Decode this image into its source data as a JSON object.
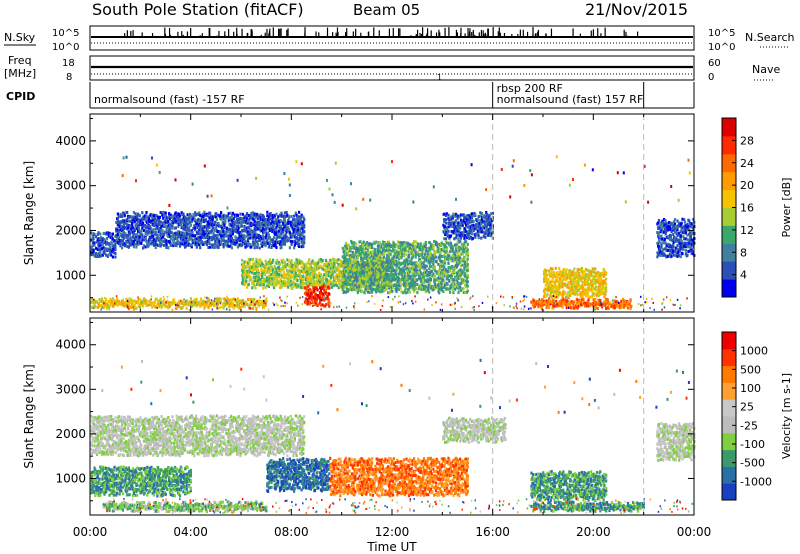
{
  "header": {
    "station": "South Pole Station (fitACF)",
    "beam": "Beam 05",
    "date": "21/Nov/2015"
  },
  "strip_labels": {
    "nsky": "N.Sky",
    "nsky_top": "10^5",
    "nsky_bottom": "10^0",
    "freq": "Freq",
    "freq_unit": "[MHz]",
    "freq_top": "18",
    "freq_bottom": "8",
    "cpid": "CPID",
    "nsearch": "N.Search",
    "nsearch_top": "10^5",
    "nsearch_bottom": "10^0",
    "nave": "Nave",
    "nave_top": "60",
    "nave_bottom": "0",
    "tick_one": "1"
  },
  "cpid_labels": [
    {
      "text": "normalsound (fast) -157 RF",
      "start_hour": 0.0
    },
    {
      "text": "rbsp 200 RF",
      "start_hour": 16.0
    },
    {
      "text": "normalsound (fast) 157 RF",
      "start_hour": 16.0
    }
  ],
  "cpid_boundaries_hours": [
    16.0,
    22.0
  ],
  "colors": {
    "power": [
      "#0000ee",
      "#2a50b8",
      "#3f7f9f",
      "#3aa86a",
      "#a8cc33",
      "#f5c400",
      "#ff9a00",
      "#ff6a00",
      "#ff2a00",
      "#dd0000"
    ],
    "velocity": [
      "#ee0000",
      "#ff3300",
      "#ff7a00",
      "#ffa030",
      "#c8c8c8",
      "#bdbdbd",
      "#7fcf3f",
      "#3a9a6a",
      "#2a6fa8",
      "#1a40c0"
    ]
  },
  "chart_data": [
    {
      "type": "heatmap",
      "title": "Power",
      "xlabel": "",
      "ylabel": "Slant Range [km]",
      "xlim_hours": [
        0,
        24
      ],
      "ylim": [
        180,
        4600
      ],
      "yticks": [
        1000,
        2000,
        3000,
        4000
      ],
      "colorbar": {
        "label": "Power [dB]",
        "ticks": [
          "4",
          "8",
          "12",
          "16",
          "20",
          "24",
          "28"
        ],
        "range": [
          0,
          30
        ]
      },
      "echo_bands": [
        {
          "t0": 0.0,
          "t1": 1.0,
          "r0": 1500,
          "r1": 2000,
          "value_level": 1
        },
        {
          "t0": 1.0,
          "t1": 8.5,
          "r0": 1700,
          "r1": 2450,
          "value_level": 1
        },
        {
          "t0": 14.0,
          "t1": 16.0,
          "r0": 1900,
          "r1": 2450,
          "value_level": 1
        },
        {
          "t0": 22.5,
          "t1": 24.0,
          "r0": 1500,
          "r1": 2300,
          "value_level": 1
        },
        {
          "t0": 6.0,
          "t1": 12.0,
          "r0": 800,
          "r1": 1400,
          "value_level": 4
        },
        {
          "t0": 10.0,
          "t1": 15.0,
          "r0": 700,
          "r1": 1800,
          "value_level": 3
        },
        {
          "t0": 8.5,
          "t1": 9.5,
          "r0": 400,
          "r1": 800,
          "value_level": 8
        },
        {
          "t0": 0.0,
          "t1": 7.0,
          "r0": 350,
          "r1": 500,
          "value_level": 5
        },
        {
          "t0": 17.5,
          "t1": 21.5,
          "r0": 350,
          "r1": 500,
          "value_level": 7
        },
        {
          "t0": 18.0,
          "t1": 20.5,
          "r0": 600,
          "r1": 1200,
          "value_level": 5
        }
      ]
    },
    {
      "type": "heatmap",
      "title": "Velocity",
      "xlabel": "Time UT",
      "ylabel": "Slant Range [km]",
      "xlim_hours": [
        0,
        24
      ],
      "ylim": [
        180,
        4600
      ],
      "yticks": [
        1000,
        2000,
        3000,
        4000
      ],
      "xticks": [
        "00:00",
        "04:00",
        "08:00",
        "12:00",
        "16:00",
        "20:00",
        "00:00"
      ],
      "colorbar": {
        "label": "Velocity [m s-1]",
        "ticks": [
          "-1000",
          "-500",
          "-100",
          "-25",
          "25",
          "100",
          "500",
          "1000"
        ],
        "range": [
          -1200,
          1200
        ]
      },
      "echo_bands": [
        {
          "t0": 0.0,
          "t1": 8.5,
          "r0": 1600,
          "r1": 2450,
          "value_level": 4
        },
        {
          "t0": 14.0,
          "t1": 16.5,
          "r0": 1900,
          "r1": 2400,
          "value_level": 4
        },
        {
          "t0": 22.5,
          "t1": 24.0,
          "r0": 1500,
          "r1": 2300,
          "value_level": 4
        },
        {
          "t0": 0.0,
          "t1": 4.0,
          "r0": 700,
          "r1": 1300,
          "value_level": 2
        },
        {
          "t0": 7.0,
          "t1": 9.5,
          "r0": 800,
          "r1": 1500,
          "value_level": 1
        },
        {
          "t0": 9.5,
          "t1": 15.0,
          "r0": 700,
          "r1": 1500,
          "value_level": 7
        },
        {
          "t0": 0.5,
          "t1": 7.0,
          "r0": 350,
          "r1": 500,
          "value_level": 3
        },
        {
          "t0": 17.5,
          "t1": 22.0,
          "r0": 350,
          "r1": 500,
          "value_level": 2
        },
        {
          "t0": 17.5,
          "t1": 20.5,
          "r0": 600,
          "r1": 1200,
          "value_level": 2
        }
      ]
    }
  ]
}
